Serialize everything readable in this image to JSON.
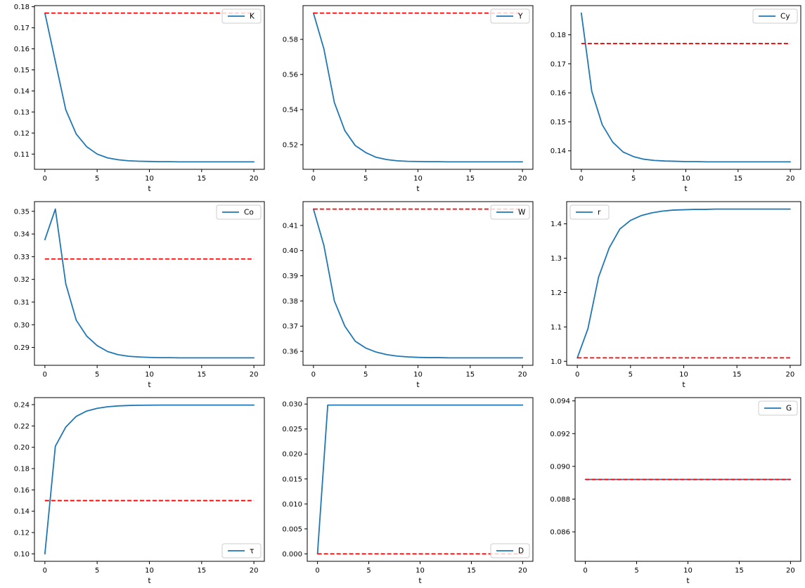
{
  "figure": {
    "background": "#ffffff",
    "line_color": "#1f77b4",
    "hline_color": "#ff0000",
    "spine_color": "#000000",
    "legend_border_color": "#cccccc",
    "xticks": [
      0,
      5,
      10,
      15,
      20
    ],
    "xtick_labels": [
      "0",
      "5",
      "10",
      "15",
      "20"
    ],
    "xlabel": "t"
  },
  "chart_data": [
    {
      "type": "line",
      "name": "K",
      "legend": "K",
      "legend_loc": "upper-right",
      "xlabel": "t",
      "x": [
        0,
        1,
        2,
        3,
        4,
        5,
        6,
        7,
        8,
        9,
        10,
        11,
        12,
        13,
        14,
        15,
        16,
        17,
        18,
        19,
        20
      ],
      "values": [
        0.177,
        0.154,
        0.131,
        0.1195,
        0.1135,
        0.11,
        0.1082,
        0.1073,
        0.1068,
        0.1066,
        0.1065,
        0.1064,
        0.1064,
        0.1063,
        0.1063,
        0.1063,
        0.1063,
        0.1063,
        0.1063,
        0.1063,
        0.1063
      ],
      "hline": 0.177,
      "ytick_labels": [
        "0.11",
        "0.12",
        "0.13",
        "0.14",
        "0.15",
        "0.16",
        "0.17",
        "0.18"
      ]
    },
    {
      "type": "line",
      "name": "Y",
      "legend": "Y",
      "legend_loc": "upper-right",
      "xlabel": "t",
      "x": [
        0,
        1,
        2,
        3,
        4,
        5,
        6,
        7,
        8,
        9,
        10,
        11,
        12,
        13,
        14,
        15,
        16,
        17,
        18,
        19,
        20
      ],
      "values": [
        0.595,
        0.5745,
        0.544,
        0.528,
        0.5195,
        0.5155,
        0.5128,
        0.5115,
        0.5108,
        0.5105,
        0.5104,
        0.5103,
        0.5103,
        0.5102,
        0.5102,
        0.5102,
        0.5102,
        0.5102,
        0.5102,
        0.5102,
        0.5102
      ],
      "hline": 0.595,
      "ytick_labels": [
        "0.52",
        "0.54",
        "0.56",
        "0.58"
      ]
    },
    {
      "type": "line",
      "name": "Cy",
      "legend": "Cy",
      "legend_loc": "upper-right",
      "xlabel": "t",
      "x": [
        0,
        1,
        2,
        3,
        4,
        5,
        6,
        7,
        8,
        9,
        10,
        11,
        12,
        13,
        14,
        15,
        16,
        17,
        18,
        19,
        20
      ],
      "values": [
        0.1875,
        0.1605,
        0.149,
        0.143,
        0.1396,
        0.138,
        0.1371,
        0.1367,
        0.1365,
        0.1364,
        0.1363,
        0.1363,
        0.1362,
        0.1362,
        0.1362,
        0.1362,
        0.1362,
        0.1362,
        0.1362,
        0.1362,
        0.1362
      ],
      "hline": 0.177,
      "ytick_labels": [
        "0.14",
        "0.15",
        "0.16",
        "0.17",
        "0.18"
      ]
    },
    {
      "type": "line",
      "name": "Co",
      "legend": "Co",
      "legend_loc": "upper-right",
      "xlabel": "t",
      "x": [
        0,
        1,
        2,
        3,
        4,
        5,
        6,
        7,
        8,
        9,
        10,
        11,
        12,
        13,
        14,
        15,
        16,
        17,
        18,
        19,
        20
      ],
      "values": [
        0.3375,
        0.351,
        0.318,
        0.302,
        0.295,
        0.2908,
        0.2882,
        0.2868,
        0.2861,
        0.2858,
        0.2856,
        0.2855,
        0.2855,
        0.2854,
        0.2854,
        0.2854,
        0.2854,
        0.2854,
        0.2854,
        0.2854,
        0.2854
      ],
      "hline": 0.329,
      "ytick_labels": [
        "0.29",
        "0.30",
        "0.31",
        "0.32",
        "0.33",
        "0.34",
        "0.35"
      ]
    },
    {
      "type": "line",
      "name": "W",
      "legend": "W",
      "legend_loc": "upper-right",
      "xlabel": "t",
      "x": [
        0,
        1,
        2,
        3,
        4,
        5,
        6,
        7,
        8,
        9,
        10,
        11,
        12,
        13,
        14,
        15,
        16,
        17,
        18,
        19,
        20
      ],
      "values": [
        0.4165,
        0.402,
        0.38,
        0.37,
        0.364,
        0.3613,
        0.3597,
        0.3587,
        0.3581,
        0.3578,
        0.3576,
        0.3575,
        0.3575,
        0.3574,
        0.3574,
        0.3574,
        0.3574,
        0.3574,
        0.3574,
        0.3574,
        0.3574
      ],
      "hline": 0.4165,
      "ytick_labels": [
        "0.36",
        "0.37",
        "0.38",
        "0.39",
        "0.40",
        "0.41"
      ]
    },
    {
      "type": "line",
      "name": "r",
      "legend": "r",
      "legend_loc": "upper-left",
      "xlabel": "t",
      "x": [
        0,
        1,
        2,
        3,
        4,
        5,
        6,
        7,
        8,
        9,
        10,
        11,
        12,
        13,
        14,
        15,
        16,
        17,
        18,
        19,
        20
      ],
      "values": [
        1.01,
        1.095,
        1.245,
        1.33,
        1.385,
        1.41,
        1.424,
        1.432,
        1.437,
        1.44,
        1.441,
        1.442,
        1.442,
        1.443,
        1.443,
        1.443,
        1.443,
        1.443,
        1.443,
        1.443,
        1.443
      ],
      "hline": 1.01,
      "ytick_labels": [
        "1.0",
        "1.1",
        "1.2",
        "1.3",
        "1.4"
      ]
    },
    {
      "type": "line",
      "name": "tau",
      "legend": "τ",
      "legend_loc": "lower-right",
      "xlabel": "t",
      "x": [
        0,
        1,
        2,
        3,
        4,
        5,
        6,
        7,
        8,
        9,
        10,
        11,
        12,
        13,
        14,
        15,
        16,
        17,
        18,
        19,
        20
      ],
      "values": [
        0.1,
        0.201,
        0.219,
        0.229,
        0.234,
        0.2365,
        0.238,
        0.2388,
        0.2392,
        0.2394,
        0.2395,
        0.2396,
        0.2396,
        0.2396,
        0.2396,
        0.2396,
        0.2396,
        0.2396,
        0.2396,
        0.2396,
        0.2396
      ],
      "hline": 0.15,
      "ytick_labels": [
        "0.10",
        "0.12",
        "0.14",
        "0.16",
        "0.18",
        "0.20",
        "0.22",
        "0.24"
      ]
    },
    {
      "type": "line",
      "name": "D",
      "legend": "D",
      "legend_loc": "lower-right",
      "xlabel": "t",
      "x": [
        0,
        1,
        2,
        3,
        4,
        5,
        6,
        7,
        8,
        9,
        10,
        11,
        12,
        13,
        14,
        15,
        16,
        17,
        18,
        19,
        20
      ],
      "values": [
        0.0,
        0.0298,
        0.0298,
        0.0298,
        0.0298,
        0.0298,
        0.0298,
        0.0298,
        0.0298,
        0.0298,
        0.0298,
        0.0298,
        0.0298,
        0.0298,
        0.0298,
        0.0298,
        0.0298,
        0.0298,
        0.0298,
        0.0298,
        0.0298
      ],
      "hline": 0.0,
      "ytick_labels": [
        "0.000",
        "0.005",
        "0.010",
        "0.015",
        "0.020",
        "0.025",
        "0.030"
      ]
    },
    {
      "type": "line",
      "name": "G",
      "legend": "G",
      "legend_loc": "upper-right",
      "xlabel": "t",
      "x": [
        0,
        1,
        2,
        3,
        4,
        5,
        6,
        7,
        8,
        9,
        10,
        11,
        12,
        13,
        14,
        15,
        16,
        17,
        18,
        19,
        20
      ],
      "values": [
        0.0892,
        0.0892,
        0.0892,
        0.0892,
        0.0892,
        0.0892,
        0.0892,
        0.0892,
        0.0892,
        0.0892,
        0.0892,
        0.0892,
        0.0892,
        0.0892,
        0.0892,
        0.0892,
        0.0892,
        0.0892,
        0.0892,
        0.0892,
        0.0892
      ],
      "hline": 0.0892,
      "ytick_labels": [
        "0.086",
        "0.088",
        "0.090",
        "0.092",
        "0.094"
      ]
    }
  ]
}
